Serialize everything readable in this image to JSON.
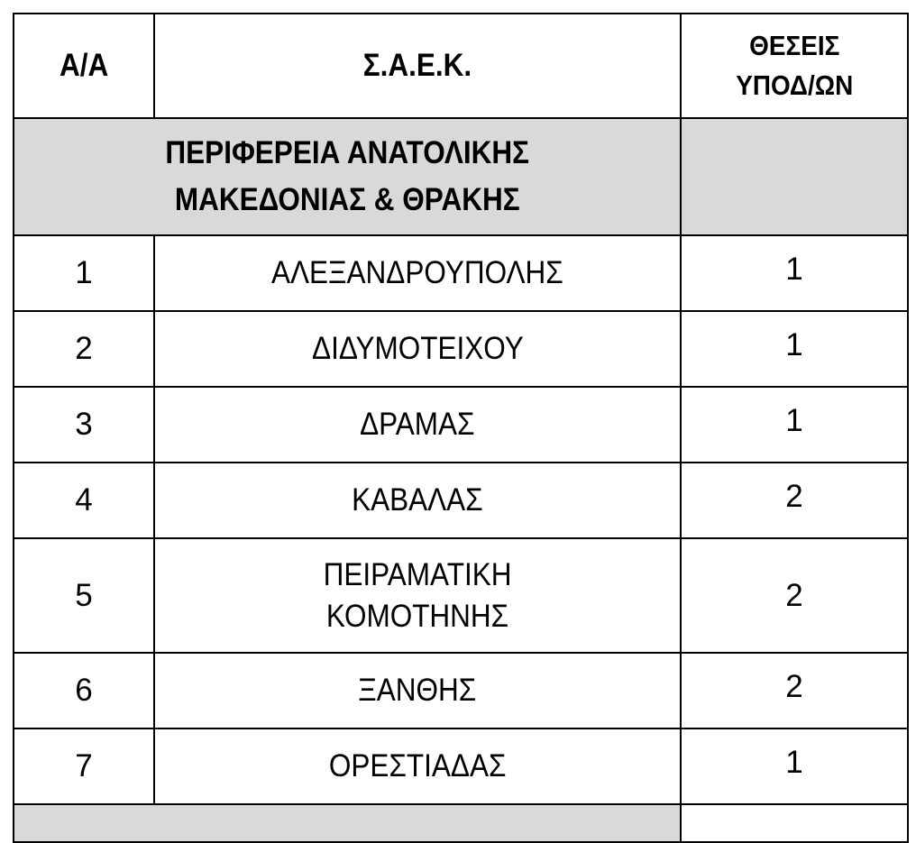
{
  "header": {
    "col_index": "Α/Α",
    "col_name": "Σ.Α.Ε.Κ.",
    "col_positions_line1": "ΘΕΣΕΙΣ",
    "col_positions_line2": "ΥΠΟΔ/ΩΝ"
  },
  "region": {
    "line1": "ΠΕΡΙΦΕΡΕΙΑ ΑΝΑΤΟΛΙΚΗΣ",
    "line2": "ΜΑΚΕΔΟΝΙΑΣ & ΘΡΑΚΗΣ"
  },
  "rows": [
    {
      "index": "1",
      "name": "ΑΛΕΞΑΝΔΡΟΥΠΟΛΗΣ",
      "positions": "1"
    },
    {
      "index": "2",
      "name": "ΔΙΔΥΜΟΤΕΙΧΟΥ",
      "positions": "1"
    },
    {
      "index": "3",
      "name": "ΔΡΑΜΑΣ",
      "positions": "1"
    },
    {
      "index": "4",
      "name": "ΚΑΒΑΛΑΣ",
      "positions": "2"
    },
    {
      "index": "5",
      "name_line1": "ΠΕΙΡΑΜΑΤΙΚΗ",
      "name_line2": "ΚΟΜΟΤΗΝΗΣ",
      "positions": "2"
    },
    {
      "index": "6",
      "name": "ΞΑΝΘΗΣ",
      "positions": "2"
    },
    {
      "index": "7",
      "name": "ΟΡΕΣΤΙΑΔΑΣ",
      "positions": "1"
    }
  ],
  "colors": {
    "region_background": "#d9d9d9",
    "border": "#000000"
  }
}
